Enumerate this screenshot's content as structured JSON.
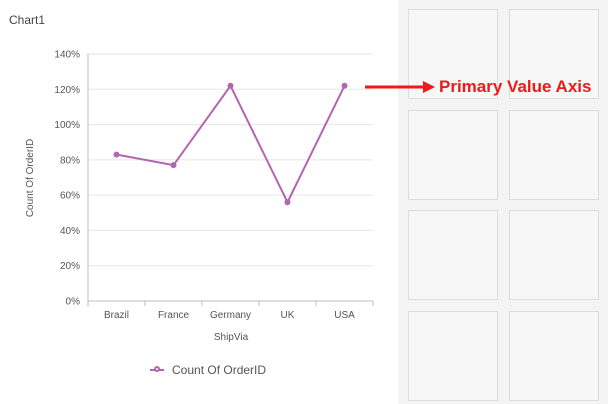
{
  "chart_data": {
    "type": "line",
    "title": "Chart1",
    "xlabel": "ShipVia",
    "ylabel": "Count Of OrderID",
    "categories": [
      "Brazil",
      "France",
      "Germany",
      "UK",
      "USA"
    ],
    "yticks": [
      "0%",
      "20%",
      "40%",
      "60%",
      "80%",
      "100%",
      "120%",
      "140%"
    ],
    "ylim": [
      0,
      140
    ],
    "series": [
      {
        "name": "Count Of OrderID",
        "values": [
          83,
          77,
          122,
          56,
          122
        ],
        "color": "#b366b0"
      }
    ],
    "grid": true,
    "legend_position": "bottom"
  },
  "annotation": {
    "label": "Primary Value Axis",
    "color": "#f01818"
  },
  "empty_cells_count": 8
}
